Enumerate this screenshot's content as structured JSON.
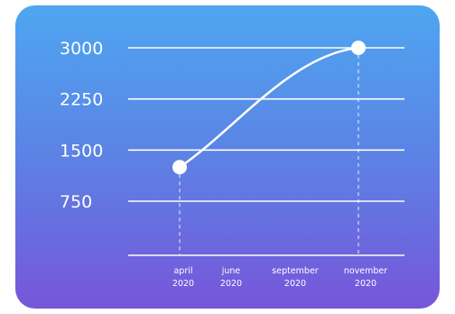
{
  "chart_data": {
    "type": "line",
    "title": "",
    "xlabel": "",
    "ylabel": "",
    "yticks": [
      3000,
      2250,
      1500,
      750
    ],
    "ylim": [
      0,
      3000
    ],
    "grid": true,
    "x_ticks": [
      {
        "month": "april",
        "year": "2020"
      },
      {
        "month": "june",
        "year": "2020"
      },
      {
        "month": "september",
        "year": "2020"
      },
      {
        "month": "november",
        "year": "2020"
      }
    ],
    "series": [
      {
        "points": [
          {
            "x": "april 2020",
            "y": 1250
          },
          {
            "x": "november 2020",
            "y": 3000
          }
        ]
      }
    ],
    "colors": {
      "gradient_top": "#4ea6f0",
      "gradient_bottom": "#7656d9",
      "line": "#ffffff"
    }
  }
}
